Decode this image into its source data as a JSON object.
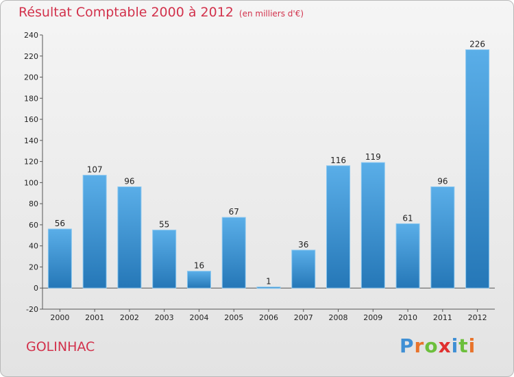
{
  "chart_data": {
    "type": "bar",
    "title": "Résultat Comptable 2000 à 2012",
    "subtitle": "(en milliers d'€)",
    "categories": [
      "2000",
      "2001",
      "2002",
      "2003",
      "2004",
      "2005",
      "2006",
      "2007",
      "2008",
      "2009",
      "2010",
      "2011",
      "2012"
    ],
    "values": [
      56,
      107,
      96,
      55,
      16,
      67,
      1,
      36,
      116,
      119,
      61,
      96,
      226
    ],
    "ylim": [
      -20,
      240
    ],
    "ytick_step": 20,
    "grid": false,
    "xlabel": "",
    "ylabel": "",
    "colors": {
      "bar_top": "#5aaee8",
      "bar_bottom": "#2577b7",
      "title": "#d2314b"
    }
  },
  "footer": {
    "place_name": "GOLINHAC",
    "logo_letters": [
      {
        "ch": "P",
        "color": "#3f8fd4"
      },
      {
        "ch": "r",
        "color": "#e8732b"
      },
      {
        "ch": "o",
        "color": "#6cbf3c"
      },
      {
        "ch": "x",
        "color": "#e0302f"
      },
      {
        "ch": "i",
        "color": "#3f8fd4"
      },
      {
        "ch": "t",
        "color": "#6cbf3c"
      },
      {
        "ch": "i",
        "color": "#e8732b"
      }
    ]
  }
}
